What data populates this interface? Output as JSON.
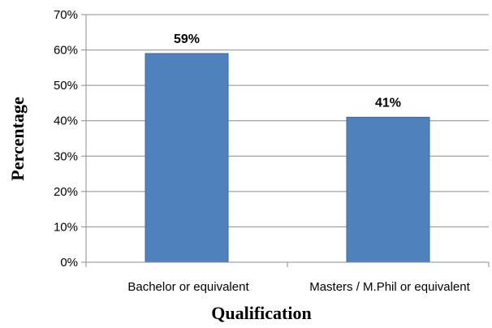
{
  "chart_data": {
    "type": "bar",
    "categories": [
      "Bachelor or equivalent",
      "Masters / M.Phil or equivalent"
    ],
    "values": [
      59,
      41
    ],
    "data_labels": [
      "59%",
      "41%"
    ],
    "xlabel": "Qualification",
    "ylabel": "Percentage",
    "ylim": [
      0,
      70
    ],
    "yticks": [
      0,
      10,
      20,
      30,
      40,
      50,
      60,
      70
    ],
    "ytick_labels": [
      "0%",
      "10%",
      "20%",
      "30%",
      "40%",
      "50%",
      "60%",
      "70%"
    ],
    "grid": true,
    "legend": "none",
    "bar_color": "#4f81bd",
    "bar_edge_color": "#3a6aa3",
    "grid_color": "#8c8c8c"
  }
}
